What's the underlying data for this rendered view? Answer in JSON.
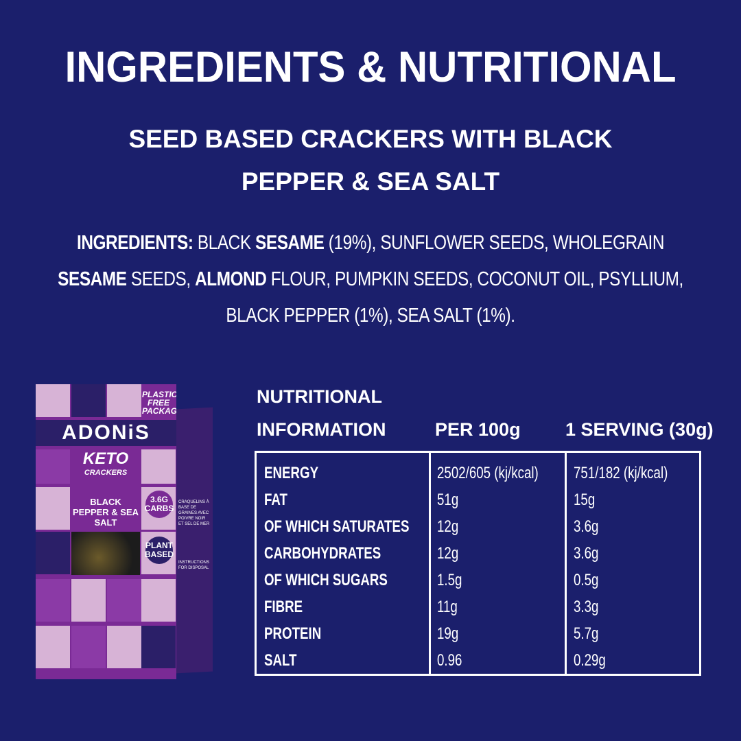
{
  "title": "INGREDIENTS & NUTRITIONAL",
  "subtitle": [
    "SEED BASED CRACKERS WITH BLACK",
    "PEPPER & SEA SALT"
  ],
  "ingredients": {
    "label": "INGREDIENTS:",
    "parts": [
      "BLACK ",
      "SESAME",
      " (19%), SUNFLOWER SEEDS, WHOLEGRAIN",
      "SESAME",
      " SEEDS, ",
      "ALMOND",
      " FLOUR, PUMPKIN SEEDS, COCONUT OIL, PSYLLIUM,",
      "BLACK PEPPER (1%), SEA SALT (1%)."
    ]
  },
  "nutrition": {
    "header": {
      "col1_line1": "NUTRITIONAL",
      "col1_line2": "INFORMATION",
      "col2": "PER 100g",
      "col3": "1 SERVING (30g)"
    },
    "rows": [
      {
        "name": "ENERGY",
        "per100": "2502/605 (kj/kcal)",
        "serving": "751/182 (kj/kcal)"
      },
      {
        "name": "FAT",
        "per100": "51g",
        "serving": "15g"
      },
      {
        "name": "OF WHICH SATURATES",
        "per100": "12g",
        "serving": "3.6g"
      },
      {
        "name": "CARBOHYDRATES",
        "per100": "12g",
        "serving": "3.6g"
      },
      {
        "name": "OF WHICH SUGARS",
        "per100": "1.5g",
        "serving": "0.5g"
      },
      {
        "name": "FIBRE",
        "per100": "11g",
        "serving": "3.3g"
      },
      {
        "name": "PROTEIN",
        "per100": "19g",
        "serving": "5.7g"
      },
      {
        "name": "SALT",
        "per100": "0.96",
        "serving": "0.29g"
      }
    ]
  },
  "product": {
    "brand": "ADONiS",
    "keto": "KETO",
    "crackers": "CRACKERS",
    "flavour": "BLACK PEPPER & SEA SALT",
    "carbs": "3.6G CARBS",
    "plant": "PLANT BASED",
    "plastic_free": "PLASTIC FREE PACKAGING",
    "side_text": "CRAQUELINS À BASE DE GRAINES AVEC POIVRE NOIR ET SEL DE MER",
    "disposal": "INSTRUCTIONS FOR DISPOSAL"
  },
  "colors": {
    "background": "#1b1f6c",
    "pack_purple": "#7a2a95",
    "pack_lilac": "#d7b3d6"
  }
}
